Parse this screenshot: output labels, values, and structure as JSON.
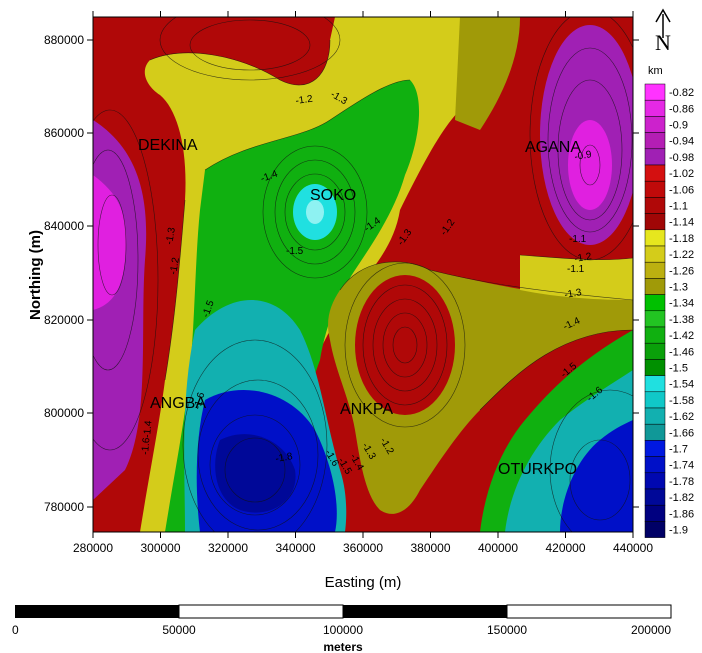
{
  "map": {
    "axes": {
      "x_title": "Easting (m)",
      "y_title": "Northing (m)",
      "x_ticks": [
        "280000",
        "300000",
        "320000",
        "340000",
        "360000",
        "380000",
        "400000",
        "420000",
        "440000"
      ],
      "y_ticks": [
        "880000",
        "860000",
        "840000",
        "820000",
        "800000",
        "780000"
      ]
    },
    "towns": [
      "DEKINA",
      "SOKO",
      "AGANA",
      "ANGBA",
      "ANKPA",
      "OTURKPO"
    ],
    "contour_labels": [
      "-1.2",
      "-1.3",
      "-1.4",
      "-1.5",
      "-1.3",
      "-1.2",
      "-1.4",
      "-1.3",
      "-1.2",
      "-1.5",
      "-1.6",
      "-1.8",
      "-1.6",
      "-1.5",
      "-1.4",
      "-1.3",
      "-1.2",
      "-1.4",
      "-1.6",
      "-1.2",
      "-1.3",
      "-1.4",
      "-1.5",
      "-1.6",
      "-1.1",
      "-1.1",
      "-0.9"
    ],
    "north_arrow": {
      "icon": "north-arrow-icon",
      "label": "N"
    },
    "legend": {
      "unit": "km",
      "values": [
        "-0.82",
        "-0.86",
        "-0.9",
        "-0.94",
        "-0.98",
        "-1.02",
        "-1.06",
        "-1.1",
        "-1.14",
        "-1.18",
        "-1.22",
        "-1.26",
        "-1.3",
        "-1.34",
        "-1.38",
        "-1.42",
        "-1.46",
        "-1.5",
        "-1.54",
        "-1.58",
        "-1.62",
        "-1.66",
        "-1.7",
        "-1.74",
        "-1.78",
        "-1.82",
        "-1.86",
        "-1.9"
      ],
      "colors": [
        "#ff33ff",
        "#e529e5",
        "#cc22cc",
        "#b41eb4",
        "#a020b4",
        "#d41010",
        "#c00a0a",
        "#b00808",
        "#a00606",
        "#e6e61e",
        "#d4cc1a",
        "#bcb010",
        "#a09a08",
        "#00c000",
        "#22c422",
        "#10b010",
        "#0aa00a",
        "#009000",
        "#20e0e0",
        "#10c8c8",
        "#12b0b0",
        "#109898",
        "#0018e0",
        "#0010c8",
        "#0008b0",
        "#000898",
        "#000080",
        "#000066"
      ]
    },
    "scalebar": {
      "labels": [
        "0",
        "50000",
        "100000",
        "150000",
        "200000"
      ],
      "unit": "meters"
    }
  }
}
